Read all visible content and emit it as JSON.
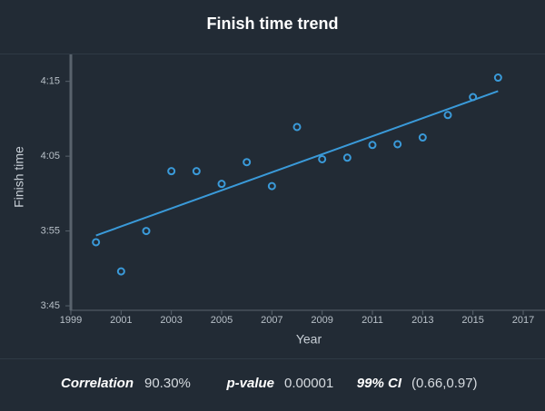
{
  "chart_data": {
    "type": "scatter",
    "title": "Finish time trend",
    "x_label": "Year",
    "y_label": "Finish time",
    "x": [
      2000,
      2001,
      2002,
      2003,
      2004,
      2005,
      2006,
      2007,
      2008,
      2009,
      2010,
      2011,
      2012,
      2013,
      2014,
      2015,
      2016
    ],
    "values": [
      233.5,
      229.6,
      235.0,
      243.0,
      243.0,
      241.3,
      244.2,
      241.0,
      248.9,
      244.6,
      244.8,
      246.5,
      246.6,
      247.5,
      250.5,
      252.9,
      255.5
    ],
    "color": "#3a9ad9",
    "trendline": {
      "x": [
        2000,
        2016
      ],
      "values": [
        234.4,
        253.7
      ],
      "color": "#3a9ad9"
    },
    "xlim": [
      1999,
      2017
    ],
    "xticks": [
      1999,
      2001,
      2003,
      2005,
      2007,
      2009,
      2011,
      2013,
      2015,
      2017
    ],
    "ylim": [
      224.4,
      258.6
    ],
    "yticks": [
      {
        "value": 225,
        "label": "3:45"
      },
      {
        "value": 235,
        "label": "3:55"
      },
      {
        "value": 245,
        "label": "4:05"
      },
      {
        "value": 255,
        "label": "4:15"
      }
    ],
    "grid": false,
    "stats": [
      {
        "label": "Correlation",
        "value": "90.30%"
      },
      {
        "label": "p-value",
        "value": "0.00001"
      },
      {
        "label": "99% CI",
        "value": "(0.66,0.97)"
      }
    ]
  }
}
